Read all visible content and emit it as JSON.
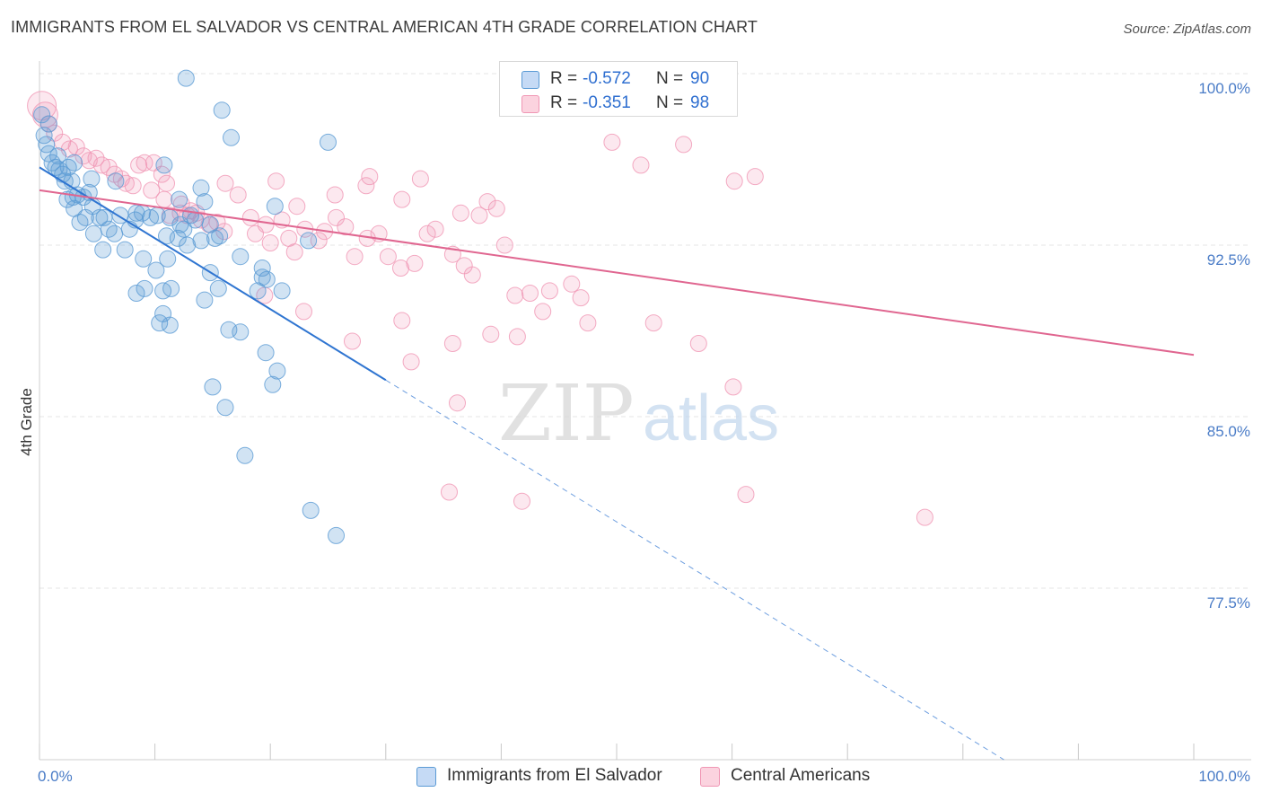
{
  "title": "IMMIGRANTS FROM EL SALVADOR VS CENTRAL AMERICAN 4TH GRADE CORRELATION CHART",
  "source": "Source: ZipAtlas.com",
  "watermark": {
    "zip": "ZIP",
    "atlas": "atlas"
  },
  "legend": {
    "r_label": "R =",
    "n_label": "N =",
    "rows": [
      {
        "r": "-0.572",
        "n": "90"
      },
      {
        "r": "-0.351",
        "n": "98"
      }
    ]
  },
  "chart_data": {
    "type": "scatter",
    "ylabel": "4th Grade",
    "xlabel": "",
    "xlim": [
      0,
      100
    ],
    "ylim": [
      70.0,
      101.0
    ],
    "x_tick_labels": [
      "0.0%",
      "100.0%"
    ],
    "y_ticks": [
      {
        "value": 100.0,
        "label": "100.0%"
      },
      {
        "value": 92.5,
        "label": "92.5%"
      },
      {
        "value": 85.0,
        "label": "85.0%"
      },
      {
        "value": 77.5,
        "label": "77.5%"
      }
    ],
    "grid": true,
    "legend_position": "top-center",
    "colors": {
      "blue": "#5b9bd5",
      "blue_line": "#2f75d1",
      "pink": "#f096b4",
      "pink_line": "#e06690",
      "tick_label": "#4a7cc7"
    },
    "series": [
      {
        "name": "Immigrants from El Salvador",
        "color": "#5b9bd5",
        "trend": {
          "x0": 0,
          "y0": 95.9,
          "x1": 30,
          "y1": 86.6,
          "dash_to_x": 100
        },
        "points": [
          [
            0.2,
            98.2
          ],
          [
            0.4,
            97.3
          ],
          [
            0.6,
            96.9
          ],
          [
            0.8,
            96.5
          ],
          [
            1.1,
            96.1
          ],
          [
            1.4,
            95.9
          ],
          [
            1.7,
            95.8
          ],
          [
            2.0,
            95.6
          ],
          [
            2.2,
            95.3
          ],
          [
            2.5,
            95.9
          ],
          [
            2.8,
            95.3
          ],
          [
            3.0,
            96.1
          ],
          [
            2.4,
            94.5
          ],
          [
            2.9,
            94.6
          ],
          [
            3.3,
            94.7
          ],
          [
            3.8,
            94.6
          ],
          [
            4.3,
            94.8
          ],
          [
            4.5,
            95.4
          ],
          [
            3.5,
            93.5
          ],
          [
            4.0,
            93.7
          ],
          [
            4.6,
            94.2
          ],
          [
            5.2,
            93.7
          ],
          [
            5.6,
            93.7
          ],
          [
            6.0,
            93.2
          ],
          [
            4.7,
            93.0
          ],
          [
            6.5,
            93.0
          ],
          [
            7.0,
            93.8
          ],
          [
            7.8,
            93.2
          ],
          [
            8.3,
            93.6
          ],
          [
            8.9,
            93.9
          ],
          [
            9.6,
            93.7
          ],
          [
            10.2,
            93.8
          ],
          [
            11.0,
            92.9
          ],
          [
            11.3,
            93.7
          ],
          [
            12.1,
            94.5
          ],
          [
            12.5,
            93.2
          ],
          [
            12.8,
            92.5
          ],
          [
            13.1,
            93.8
          ],
          [
            13.5,
            93.6
          ],
          [
            14.0,
            92.7
          ],
          [
            14.3,
            94.4
          ],
          [
            14.8,
            93.4
          ],
          [
            15.2,
            92.8
          ],
          [
            15.6,
            92.9
          ],
          [
            5.5,
            92.3
          ],
          [
            7.4,
            92.3
          ],
          [
            9.0,
            91.9
          ],
          [
            10.1,
            91.4
          ],
          [
            11.1,
            91.9
          ],
          [
            12.0,
            92.8
          ],
          [
            14.8,
            91.3
          ],
          [
            17.4,
            92.0
          ],
          [
            19.3,
            91.5
          ],
          [
            19.3,
            91.1
          ],
          [
            19.7,
            91.0
          ],
          [
            8.4,
            90.4
          ],
          [
            9.1,
            90.6
          ],
          [
            10.7,
            90.5
          ],
          [
            11.4,
            90.6
          ],
          [
            14.3,
            90.1
          ],
          [
            15.5,
            90.6
          ],
          [
            18.9,
            90.5
          ],
          [
            21.0,
            90.5
          ],
          [
            10.7,
            89.5
          ],
          [
            10.4,
            89.1
          ],
          [
            11.3,
            89.0
          ],
          [
            16.4,
            88.8
          ],
          [
            17.4,
            88.7
          ],
          [
            19.6,
            87.8
          ],
          [
            20.6,
            87.0
          ],
          [
            20.2,
            86.4
          ],
          [
            15.0,
            86.3
          ],
          [
            16.1,
            85.4
          ],
          [
            17.8,
            83.3
          ],
          [
            23.5,
            80.9
          ],
          [
            25.7,
            79.8
          ],
          [
            10.8,
            96.0
          ],
          [
            12.7,
            99.8
          ],
          [
            15.8,
            98.4
          ],
          [
            16.6,
            97.2
          ],
          [
            25.0,
            97.0
          ],
          [
            14.0,
            95.0
          ],
          [
            20.4,
            94.2
          ],
          [
            23.3,
            92.7
          ],
          [
            12.2,
            93.4
          ],
          [
            8.4,
            93.9
          ],
          [
            3.0,
            94.1
          ],
          [
            1.6,
            96.4
          ],
          [
            6.6,
            95.3
          ],
          [
            0.8,
            97.8
          ]
        ]
      },
      {
        "name": "Central Americans",
        "color": "#f096b4",
        "trend": {
          "x0": 0,
          "y0": 94.9,
          "x1": 100,
          "y1": 87.7
        },
        "points": [
          [
            0.2,
            98.6
          ],
          [
            0.5,
            98.2
          ],
          [
            0.8,
            97.8
          ],
          [
            1.3,
            97.4
          ],
          [
            2.0,
            97.0
          ],
          [
            2.6,
            96.7
          ],
          [
            3.2,
            96.8
          ],
          [
            3.8,
            96.4
          ],
          [
            4.3,
            96.2
          ],
          [
            4.9,
            96.3
          ],
          [
            5.4,
            96.0
          ],
          [
            6.0,
            95.9
          ],
          [
            6.5,
            95.6
          ],
          [
            7.1,
            95.4
          ],
          [
            7.5,
            95.2
          ],
          [
            8.1,
            95.1
          ],
          [
            8.6,
            96.0
          ],
          [
            9.1,
            96.1
          ],
          [
            9.9,
            96.1
          ],
          [
            10.6,
            95.6
          ],
          [
            11.0,
            95.2
          ],
          [
            9.7,
            94.9
          ],
          [
            10.8,
            94.5
          ],
          [
            12.3,
            94.3
          ],
          [
            12.8,
            93.8
          ],
          [
            13.6,
            93.9
          ],
          [
            14.0,
            93.6
          ],
          [
            14.7,
            93.4
          ],
          [
            15.4,
            93.5
          ],
          [
            16.0,
            93.1
          ],
          [
            11.3,
            93.8
          ],
          [
            12.2,
            93.9
          ],
          [
            13.1,
            94.0
          ],
          [
            16.1,
            95.2
          ],
          [
            17.2,
            94.7
          ],
          [
            18.3,
            93.7
          ],
          [
            18.7,
            93.0
          ],
          [
            19.6,
            93.4
          ],
          [
            20.0,
            92.6
          ],
          [
            21.0,
            93.6
          ],
          [
            21.6,
            92.8
          ],
          [
            22.1,
            92.2
          ],
          [
            23.0,
            93.2
          ],
          [
            24.2,
            92.7
          ],
          [
            24.7,
            93.1
          ],
          [
            25.7,
            93.7
          ],
          [
            26.5,
            93.3
          ],
          [
            27.3,
            92.0
          ],
          [
            28.4,
            92.8
          ],
          [
            29.4,
            93.0
          ],
          [
            30.2,
            92.0
          ],
          [
            31.3,
            91.5
          ],
          [
            32.5,
            91.7
          ],
          [
            33.6,
            93.0
          ],
          [
            34.3,
            93.2
          ],
          [
            35.8,
            92.1
          ],
          [
            36.8,
            91.6
          ],
          [
            37.5,
            91.2
          ],
          [
            36.5,
            93.9
          ],
          [
            38.1,
            93.8
          ],
          [
            38.8,
            94.4
          ],
          [
            39.6,
            94.1
          ],
          [
            40.3,
            92.5
          ],
          [
            41.2,
            90.3
          ],
          [
            42.5,
            90.4
          ],
          [
            44.2,
            90.5
          ],
          [
            43.6,
            89.6
          ],
          [
            46.1,
            90.8
          ],
          [
            46.9,
            90.2
          ],
          [
            47.5,
            89.1
          ],
          [
            49.6,
            97.0
          ],
          [
            52.1,
            96.0
          ],
          [
            55.8,
            96.9
          ],
          [
            60.2,
            95.3
          ],
          [
            62.0,
            95.5
          ],
          [
            28.6,
            95.5
          ],
          [
            28.3,
            95.1
          ],
          [
            33.0,
            95.4
          ],
          [
            31.4,
            94.5
          ],
          [
            20.5,
            95.3
          ],
          [
            25.6,
            94.7
          ],
          [
            22.3,
            94.2
          ],
          [
            19.5,
            90.3
          ],
          [
            22.9,
            89.6
          ],
          [
            27.1,
            88.3
          ],
          [
            31.4,
            89.2
          ],
          [
            35.8,
            88.2
          ],
          [
            39.1,
            88.6
          ],
          [
            41.4,
            88.5
          ],
          [
            53.2,
            89.1
          ],
          [
            57.1,
            88.2
          ],
          [
            60.1,
            86.3
          ],
          [
            36.2,
            85.6
          ],
          [
            32.2,
            87.4
          ],
          [
            35.5,
            81.7
          ],
          [
            41.8,
            81.3
          ],
          [
            61.2,
            81.6
          ],
          [
            76.7,
            80.6
          ]
        ]
      }
    ]
  },
  "bottom_legend": [
    "Immigrants from El Salvador",
    "Central Americans"
  ]
}
